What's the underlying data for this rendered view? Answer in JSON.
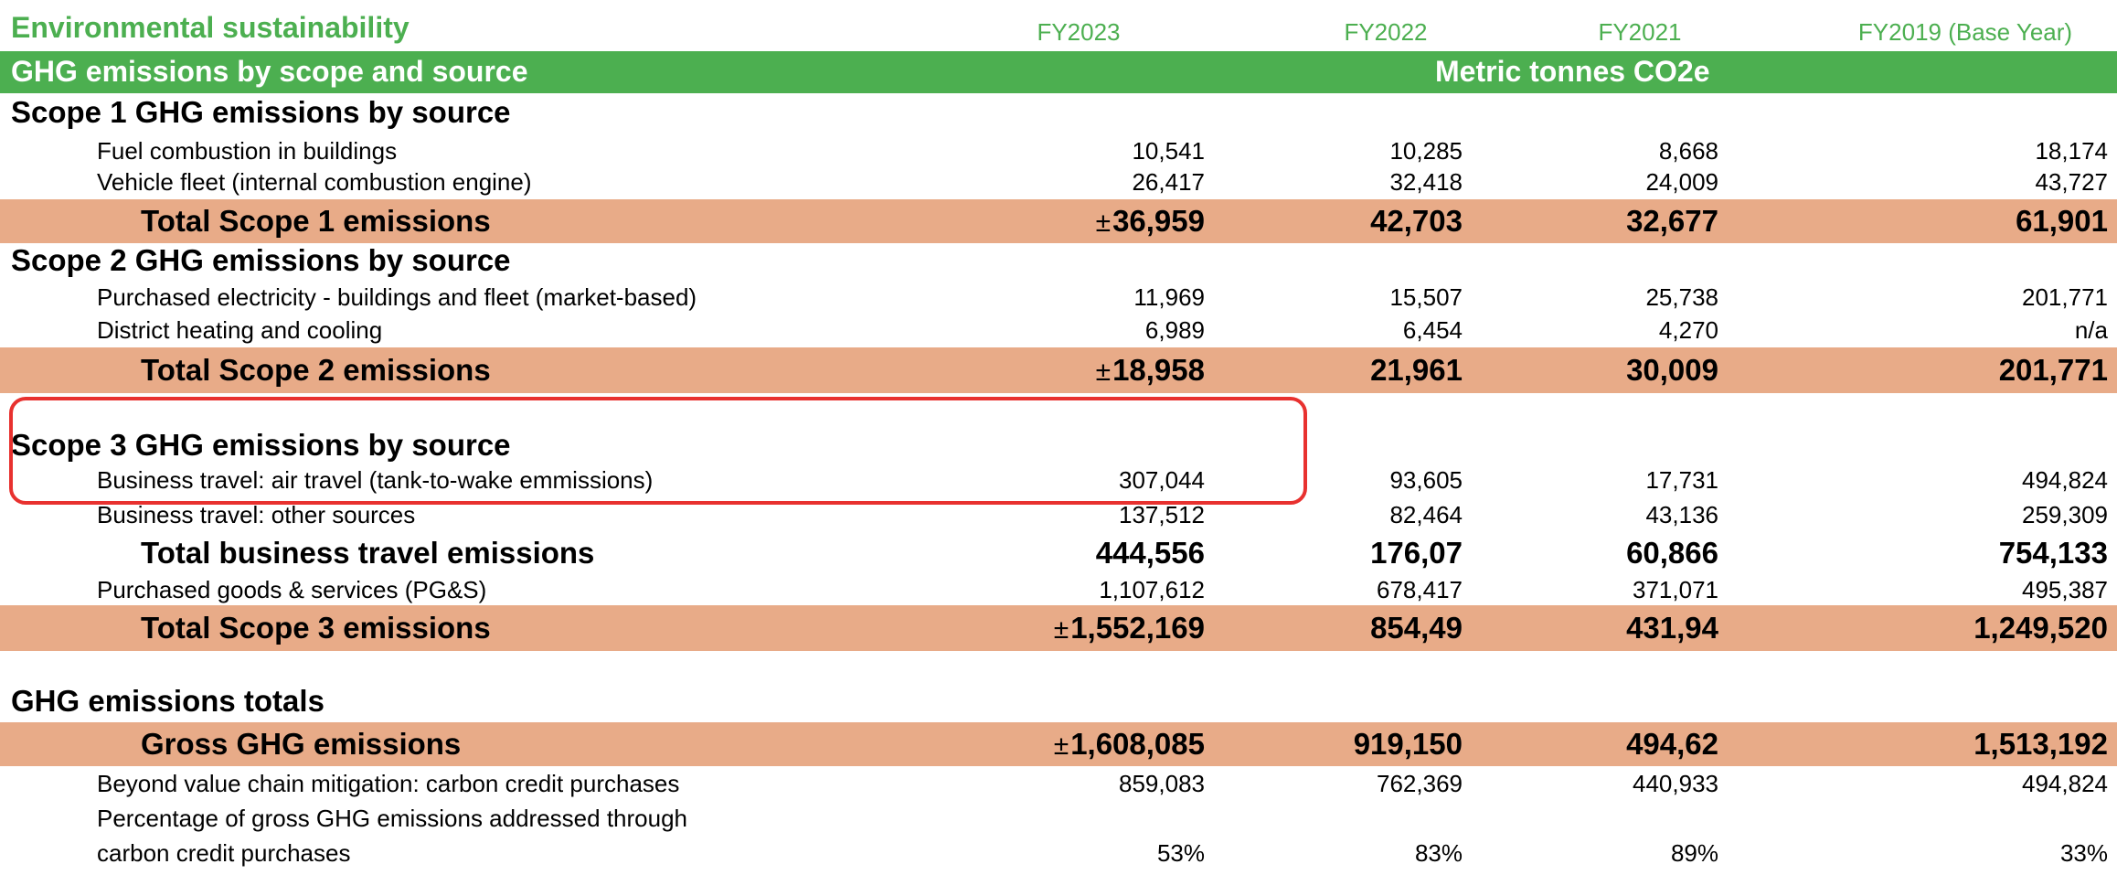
{
  "header": {
    "title": "Environmental sustainability",
    "years": [
      "FY2023",
      "FY2022",
      "FY2021",
      "FY2019 (Base Year)"
    ],
    "colors": {
      "green_text": "#4caf50",
      "green_band": "#4caf50",
      "total_band": "#e8ab88",
      "highlight": "#e8312f"
    }
  },
  "banner": {
    "left": "GHG emissions by scope and source",
    "center": "Metric tonnes CO2e"
  },
  "scope1": {
    "heading": "Scope 1 GHG emissions by source",
    "rows": [
      {
        "label": "Fuel combustion in buildings",
        "v": [
          "10,541",
          "10,285",
          "8,668",
          "18,174"
        ]
      },
      {
        "label": "Vehicle fleet (internal combustion engine)",
        "v": [
          "26,417",
          "32,418",
          "24,009",
          "43,727"
        ]
      }
    ],
    "total": {
      "label": "Total Scope 1 emissions",
      "pm": "±",
      "v": [
        "36,959",
        "42,703",
        "32,677",
        "61,901"
      ]
    }
  },
  "scope2": {
    "heading": "Scope 2 GHG emissions by source",
    "rows": [
      {
        "label": "Purchased electricity - buildings and fleet (market-based)",
        "v": [
          "11,969",
          "15,507",
          "25,738",
          "201,771"
        ]
      },
      {
        "label": "District heating and cooling",
        "v": [
          "6,989",
          "6,454",
          "4,270",
          "n/a"
        ]
      }
    ],
    "total": {
      "label": "Total Scope 2 emissions",
      "pm": "±",
      "v": [
        "18,958",
        "21,961",
        "30,009",
        "201,771"
      ]
    }
  },
  "scope3": {
    "heading": "Scope 3 GHG emissions by source",
    "rows": [
      {
        "label": "Business travel: air travel (tank-to-wake emmissions)",
        "v": [
          "307,044",
          "93,605",
          "17,731",
          "494,824"
        ]
      },
      {
        "label": "Business travel: other sources",
        "v": [
          "137,512",
          "82,464",
          "43,136",
          "259,309"
        ]
      }
    ],
    "travel_total": {
      "label": "Total business travel emissions",
      "v": [
        "444,556",
        "176,07",
        "60,866",
        "754,133"
      ]
    },
    "pgs": {
      "label": "Purchased goods & services (PG&S)",
      "v": [
        "1,107,612",
        "678,417",
        "371,071",
        "495,387"
      ]
    },
    "total": {
      "label": "Total Scope 3 emissions",
      "pm": "±",
      "v": [
        "1,552,169",
        "854,49",
        "431,94",
        "1,249,520"
      ]
    }
  },
  "totals": {
    "heading": "GHG emissions totals",
    "gross": {
      "label": "Gross GHG emissions",
      "pm": "±",
      "v": [
        "1,608,085",
        "919,150",
        "494,62",
        "1,513,192"
      ]
    },
    "mitigation": {
      "label": "Beyond value chain mitigation: carbon credit purchases",
      "v": [
        "859,083",
        "762,369",
        "440,933",
        "494,824"
      ]
    },
    "pct": {
      "label_line1": "Percentage of gross GHG emissions addressed through",
      "label_line2": "carbon credit purchases",
      "v": [
        "53%",
        "83%",
        "89%",
        "33%"
      ]
    }
  }
}
